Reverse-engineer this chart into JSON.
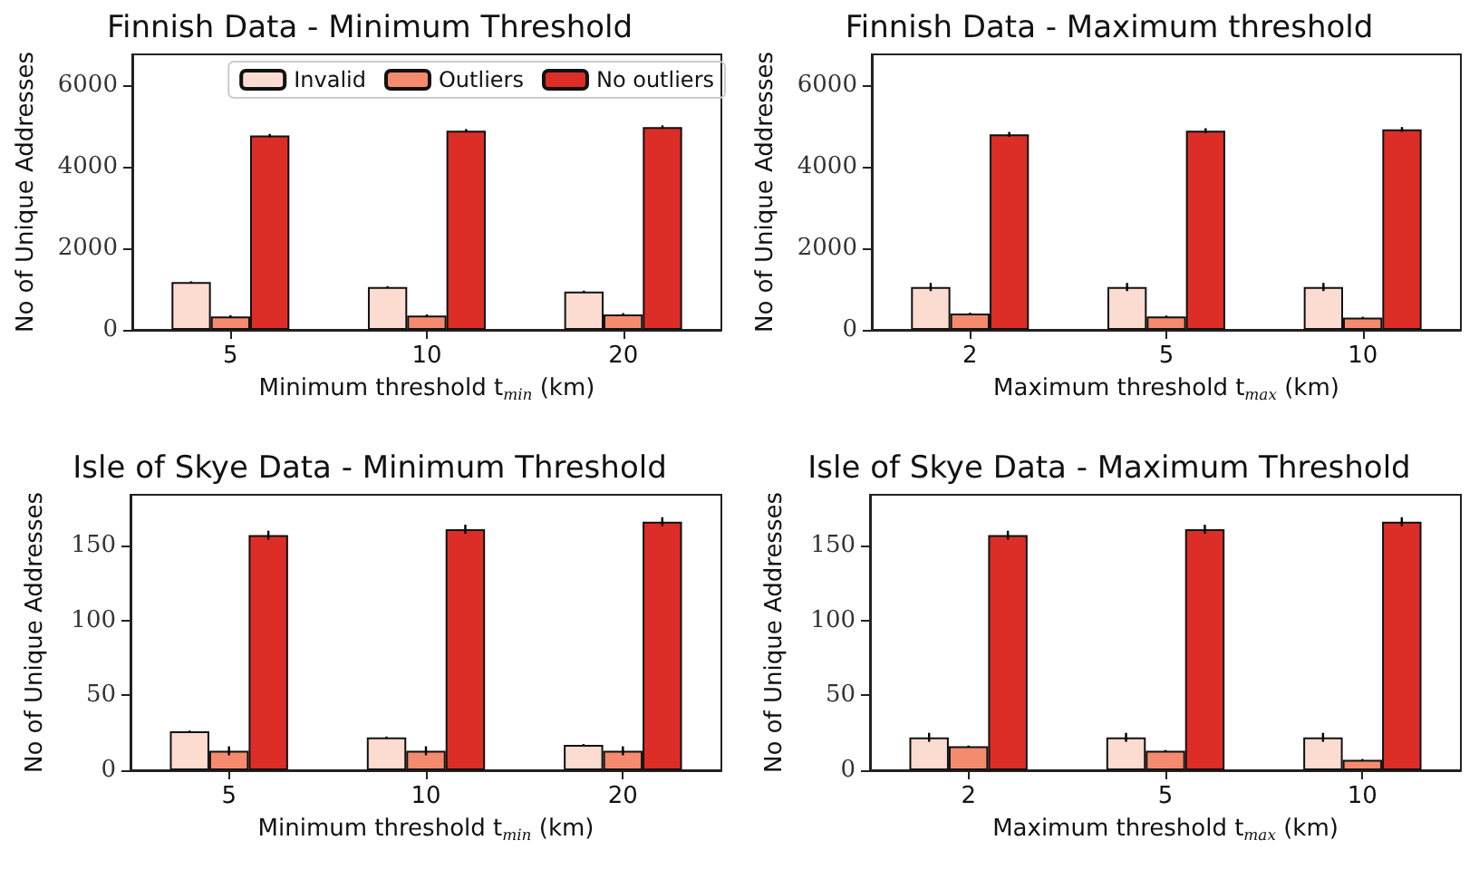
{
  "chart_data": [
    {
      "type": "bar",
      "title": "Finnish Data - Minimum Threshold",
      "xlabel": "Minimum threshold t$_{min}$ (km)",
      "ylabel": "No of Unique Addresses",
      "categories": [
        "5",
        "10",
        "20"
      ],
      "ylim": [
        0,
        6750
      ],
      "yticks": [
        0,
        2000,
        4000,
        6000
      ],
      "grid": false,
      "legend": "top right",
      "series": [
        {
          "name": "Invalid",
          "color": "#fcdcd0",
          "values": [
            1170,
            1050,
            940
          ],
          "errors": [
            20,
            20,
            20
          ]
        },
        {
          "name": "Outliers",
          "color": "#f58b6e",
          "values": [
            330,
            350,
            380
          ],
          "errors": [
            30,
            30,
            30
          ]
        },
        {
          "name": "No outliers",
          "color": "#dc2e27",
          "values": [
            4760,
            4880,
            4970
          ],
          "errors": [
            40,
            40,
            40
          ]
        }
      ]
    },
    {
      "type": "bar",
      "title": "Finnish Data - Maximum threshold",
      "xlabel": "Maximum threshold t$_{max}$ (km)",
      "ylabel": "No of Unique Addresses",
      "categories": [
        "2",
        "5",
        "10"
      ],
      "ylim": [
        0,
        6750
      ],
      "yticks": [
        0,
        2000,
        4000,
        6000
      ],
      "grid": false,
      "legend": false,
      "series": [
        {
          "color": "#fcdcd0",
          "values": [
            1050,
            1050,
            1050
          ],
          "errors": [
            100,
            100,
            100
          ]
        },
        {
          "color": "#f58b6e",
          "values": [
            400,
            330,
            300
          ],
          "errors": [
            20,
            20,
            20
          ]
        },
        {
          "color": "#dc2e27",
          "values": [
            4790,
            4880,
            4910
          ],
          "errors": [
            60,
            60,
            60
          ]
        }
      ]
    },
    {
      "type": "bar",
      "title": "Isle of Skye Data - Minimum Threshold",
      "xlabel": "Minimum threshold t$_{min}$ (km)",
      "ylabel": "No of Unique Addresses",
      "categories": [
        "5",
        "10",
        "20"
      ],
      "ylim": [
        0,
        184
      ],
      "yticks": [
        0,
        50,
        100,
        150
      ],
      "grid": false,
      "legend": false,
      "series": [
        {
          "color": "#fcdcd0",
          "values": [
            26,
            22,
            17
          ],
          "errors": [
            0.5,
            0.5,
            0.5
          ]
        },
        {
          "color": "#f58b6e",
          "values": [
            13,
            13,
            13
          ],
          "errors": [
            3,
            3,
            3
          ]
        },
        {
          "color": "#dc2e27",
          "values": [
            157,
            161,
            166
          ],
          "errors": [
            3,
            3,
            3
          ]
        }
      ]
    },
    {
      "type": "bar",
      "title": "Isle of Skye Data - Maximum Threshold",
      "xlabel": "Maximum threshold t$_{max}$ (km)",
      "ylabel": "No of Unique Addresses",
      "categories": [
        "2",
        "5",
        "10"
      ],
      "ylim": [
        0,
        184
      ],
      "yticks": [
        0,
        50,
        100,
        150
      ],
      "grid": false,
      "legend": false,
      "series": [
        {
          "color": "#fcdcd0",
          "values": [
            22,
            22,
            22
          ],
          "errors": [
            3,
            3,
            3
          ]
        },
        {
          "color": "#f58b6e",
          "values": [
            16,
            13,
            7
          ],
          "errors": [
            0.5,
            0.5,
            0.5
          ]
        },
        {
          "color": "#dc2e27",
          "values": [
            157,
            161,
            166
          ],
          "errors": [
            3,
            3,
            3
          ]
        }
      ]
    }
  ]
}
